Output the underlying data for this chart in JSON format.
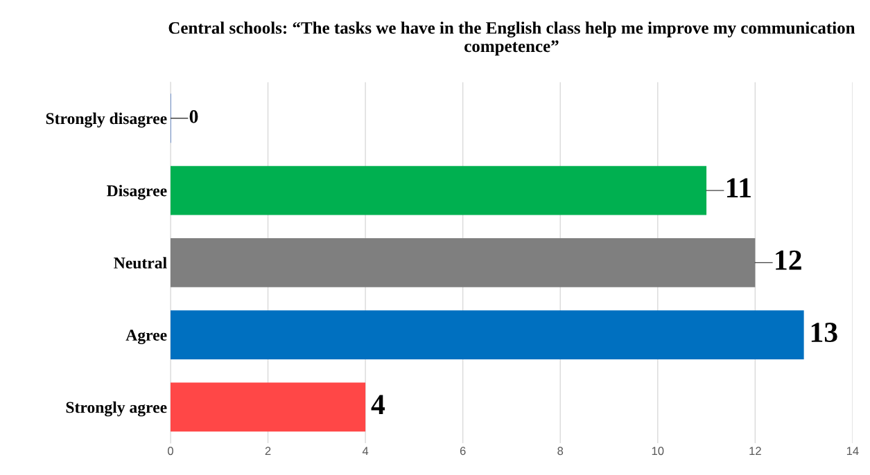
{
  "chart_data": {
    "type": "bar",
    "orientation": "horizontal",
    "title": "Central schools: “The tasks we have in the English class help me improve my communication competence”",
    "categories": [
      "Strongly disagree",
      "Disagree",
      "Neutral",
      "Agree",
      "Strongly agree"
    ],
    "values": [
      0,
      11,
      12,
      13,
      4
    ],
    "colors": [
      "#4472c4",
      "#00b050",
      "#7f7f7f",
      "#0070c0",
      "#ff4747"
    ],
    "xlim": [
      0,
      14
    ],
    "xticks": [
      0,
      2,
      4,
      6,
      8,
      10,
      12,
      14
    ],
    "grid": "x",
    "data_labels": true,
    "legend": false
  }
}
